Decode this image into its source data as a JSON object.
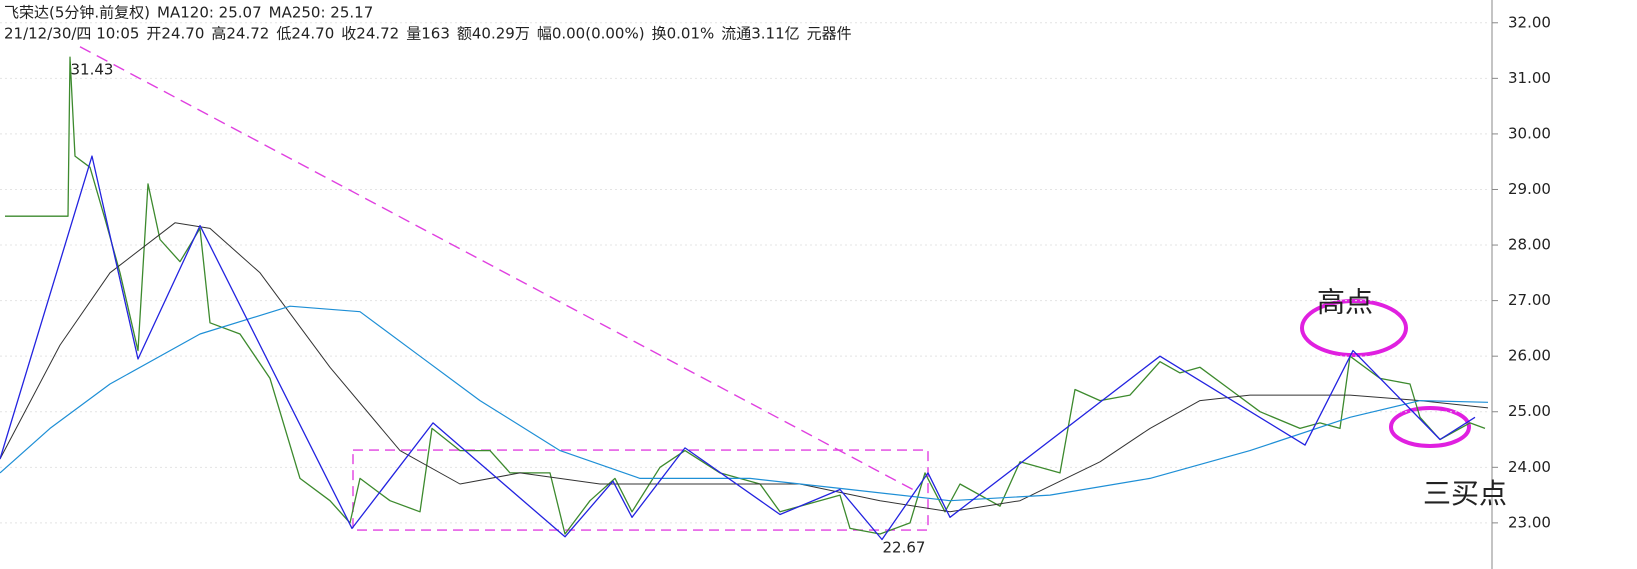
{
  "chart_data": {
    "type": "line",
    "header": {
      "line1": [
        {
          "text": "飞荣达(5分钟.前复权)",
          "color": "#222"
        },
        {
          "text": "MA120: 25.07",
          "color": "#222"
        },
        {
          "text": "MA250: 25.17",
          "color": "#1e7fd0"
        }
      ],
      "line2": [
        {
          "text": "21/12/30/四 10:05",
          "color": "#222"
        },
        {
          "text": "开24.70",
          "color": "#1a9a1a"
        },
        {
          "text": "高24.72",
          "color": "#222"
        },
        {
          "text": "低24.70",
          "color": "#1a9a1a"
        },
        {
          "text": "收24.72",
          "color": "#222"
        },
        {
          "text": "量163",
          "color": "#222"
        },
        {
          "text": "额40.29万",
          "color": "#222"
        },
        {
          "text": "幅0.00(0.00%)",
          "color": "#222"
        },
        {
          "text": "换0.01%",
          "color": "#222"
        },
        {
          "text": "流通3.11亿",
          "color": "#222"
        },
        {
          "text": "元器件",
          "color": "#222"
        }
      ]
    },
    "xlim": [
      0,
      1490
    ],
    "ylim": [
      22.17,
      32.41
    ],
    "yticks": [
      {
        "value": 23,
        "label": "23.00"
      },
      {
        "value": 24,
        "label": "24.00"
      },
      {
        "value": 25,
        "label": "25.00"
      },
      {
        "value": 26,
        "label": "26.00"
      },
      {
        "value": 27,
        "label": "27.00"
      },
      {
        "value": 28,
        "label": "28.00"
      },
      {
        "value": 29,
        "label": "29.00"
      },
      {
        "value": 30,
        "label": "30.00"
      },
      {
        "value": 31,
        "label": "31.00"
      },
      {
        "value": 32,
        "label": "32.00"
      }
    ],
    "grid": true,
    "series": [
      {
        "color": "#3d8a2e",
        "width": 1.3,
        "dashed": false,
        "x": [
          5,
          68,
          70,
          75,
          90,
          105,
          120,
          138,
          148,
          160,
          180,
          200,
          210,
          240,
          270,
          285,
          300,
          330,
          350,
          360,
          390,
          420,
          432,
          460,
          490,
          510,
          550,
          565,
          590,
          615,
          632,
          660,
          685,
          720,
          760,
          780,
          840,
          850,
          880,
          910,
          925,
          945,
          960,
          1000,
          1020,
          1060,
          1075,
          1100,
          1130,
          1160,
          1180,
          1200,
          1230,
          1260,
          1300,
          1320,
          1340,
          1350,
          1380,
          1410,
          1420,
          1440,
          1470,
          1485
        ],
        "values": [
          28.52,
          28.52,
          31.38,
          29.6,
          29.4,
          28.47,
          27.5,
          26.1,
          29.1,
          28.1,
          27.7,
          28.3,
          26.6,
          26.4,
          25.6,
          24.7,
          23.8,
          23.4,
          23.0,
          23.8,
          23.4,
          23.2,
          24.7,
          24.3,
          24.3,
          23.9,
          23.9,
          22.8,
          23.4,
          23.8,
          23.2,
          24.0,
          24.3,
          23.9,
          23.7,
          23.2,
          23.5,
          22.9,
          22.8,
          23.0,
          23.9,
          23.2,
          23.7,
          23.3,
          24.1,
          23.9,
          25.4,
          25.2,
          25.3,
          25.9,
          25.7,
          25.8,
          25.4,
          25.0,
          24.7,
          24.8,
          24.7,
          26.0,
          25.6,
          25.5,
          24.9,
          24.5,
          24.8,
          24.7
        ]
      },
      {
        "color": "#333333",
        "width": 1,
        "dashed": false,
        "x": [
          0,
          60,
          110,
          175,
          210,
          260,
          330,
          400,
          460,
          520,
          600,
          700,
          800,
          880,
          950,
          1020,
          1100,
          1150,
          1200,
          1250,
          1350,
          1420,
          1488
        ],
        "values": [
          24.15,
          26.2,
          27.5,
          28.4,
          28.3,
          27.5,
          25.8,
          24.3,
          23.7,
          23.9,
          23.7,
          23.7,
          23.7,
          23.4,
          23.2,
          23.4,
          24.1,
          24.7,
          25.2,
          25.3,
          25.3,
          25.2,
          25.07
        ]
      },
      {
        "color": "#1e8fd6",
        "width": 1.2,
        "dashed": false,
        "x": [
          0,
          50,
          110,
          200,
          290,
          360,
          420,
          480,
          560,
          640,
          750,
          850,
          950,
          1050,
          1150,
          1250,
          1350,
          1420,
          1488
        ],
        "values": [
          23.9,
          24.7,
          25.5,
          26.4,
          26.9,
          26.8,
          26.0,
          25.2,
          24.3,
          23.8,
          23.8,
          23.6,
          23.4,
          23.5,
          23.8,
          24.3,
          24.9,
          25.2,
          25.17
        ]
      },
      {
        "color": "#2323e0",
        "width": 1.3,
        "dashed": false,
        "x": [
          0,
          92,
          138,
          200,
          352,
          433,
          565,
          613,
          632,
          685,
          780,
          840,
          882,
          928,
          950,
          1160,
          1305,
          1353,
          1440,
          1475
        ],
        "values": [
          24.15,
          29.6,
          25.95,
          28.35,
          22.9,
          24.8,
          22.75,
          23.75,
          23.1,
          24.35,
          23.15,
          23.6,
          22.7,
          23.9,
          23.1,
          26.0,
          24.4,
          26.1,
          24.5,
          24.9
        ]
      },
      {
        "color": "#e040e0",
        "width": 1.4,
        "dashed": true,
        "x": [
          80,
          915
        ],
        "values": [
          31.57,
          23.58
        ]
      }
    ],
    "box": {
      "color": "#e040e0",
      "x": [
        353,
        928
      ],
      "y": [
        22.87,
        24.31
      ]
    },
    "annotations": [
      {
        "text": "31.43",
        "x": 92,
        "y": 31.15,
        "color": "#222",
        "size": 15
      },
      {
        "text": "22.67",
        "x": 904,
        "y": 22.55,
        "color": "#222",
        "size": 15
      },
      {
        "text": "高点",
        "x": 1345,
        "y": 26.95,
        "color": "#e020e0",
        "size": 28
      },
      {
        "text": "三买点",
        "x": 1465,
        "y": 23.5,
        "color": "#e020e0",
        "size": 28
      }
    ]
  }
}
